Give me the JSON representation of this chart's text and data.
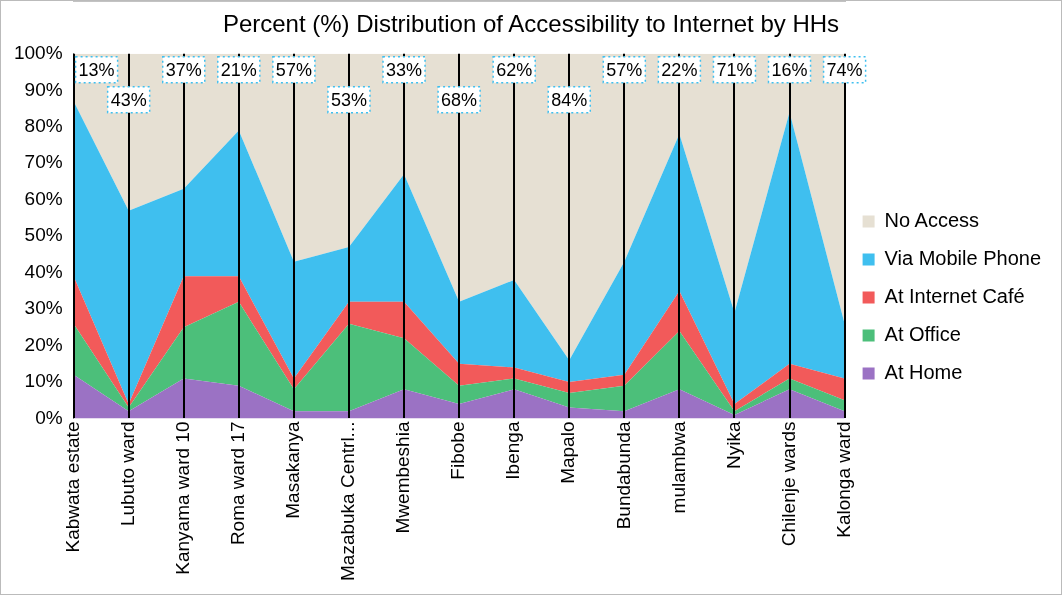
{
  "chart_data": {
    "type": "area",
    "title": "Percent (%) Distribution of Accessibility to Internet by HHs",
    "stacked": true,
    "categories": [
      "Kabwata estate",
      "Lubuto ward",
      "Kanyama ward 10",
      "Roma ward 17",
      "Masakanya",
      "Mazabuka Centrl...",
      "Mwembeshia",
      "Fibobe",
      "Ibenga",
      "Mapalo",
      "Bundabunda",
      "mulambwa",
      "Nyika",
      "Chilenje wards",
      "Kalonga ward"
    ],
    "series": [
      {
        "name": "At Home",
        "color": "#9b72c4",
        "values": [
          12,
          2,
          11,
          9,
          2,
          2,
          8,
          4,
          8,
          3,
          2,
          8,
          1,
          8,
          2
        ]
      },
      {
        "name": "At Office",
        "color": "#4cbf7a",
        "values": [
          14,
          1,
          14,
          23,
          6,
          24,
          14,
          5,
          3,
          4,
          7,
          16,
          1,
          3,
          3
        ]
      },
      {
        "name": "At Internet Café",
        "color": "#f25a5a",
        "values": [
          13,
          1,
          14,
          7,
          3,
          6,
          10,
          6,
          3,
          3,
          3,
          11,
          2,
          4,
          6
        ]
      },
      {
        "name": "Via Mobile Phone",
        "color": "#3fbfef",
        "values": [
          48,
          53,
          24,
          40,
          32,
          15,
          35,
          17,
          24,
          6,
          31,
          43,
          25,
          69,
          15
        ]
      },
      {
        "name": "No Access",
        "color": "#e6e0d3",
        "values": [
          13,
          43,
          37,
          21,
          57,
          53,
          33,
          68,
          62,
          84,
          57,
          22,
          71,
          16,
          74
        ],
        "value_labels": [
          "13%",
          "43%",
          "37%",
          "21%",
          "57%",
          "53%",
          "33%",
          "68%",
          "62%",
          "84%",
          "57%",
          "22%",
          "71%",
          "16%",
          "74%"
        ]
      }
    ],
    "ylim": [
      0,
      100
    ],
    "yticks": [
      {
        "value": 0,
        "label": "0%"
      },
      {
        "value": 10,
        "label": "10%"
      },
      {
        "value": 20,
        "label": "20%"
      },
      {
        "value": 30,
        "label": "30%"
      },
      {
        "value": 40,
        "label": "40%"
      },
      {
        "value": 50,
        "label": "50%"
      },
      {
        "value": 60,
        "label": "60%"
      },
      {
        "value": 70,
        "label": "70%"
      },
      {
        "value": 80,
        "label": "80%"
      },
      {
        "value": 90,
        "label": "90%"
      },
      {
        "value": 100,
        "label": "100%"
      }
    ],
    "grid": "x",
    "legend": "right"
  }
}
